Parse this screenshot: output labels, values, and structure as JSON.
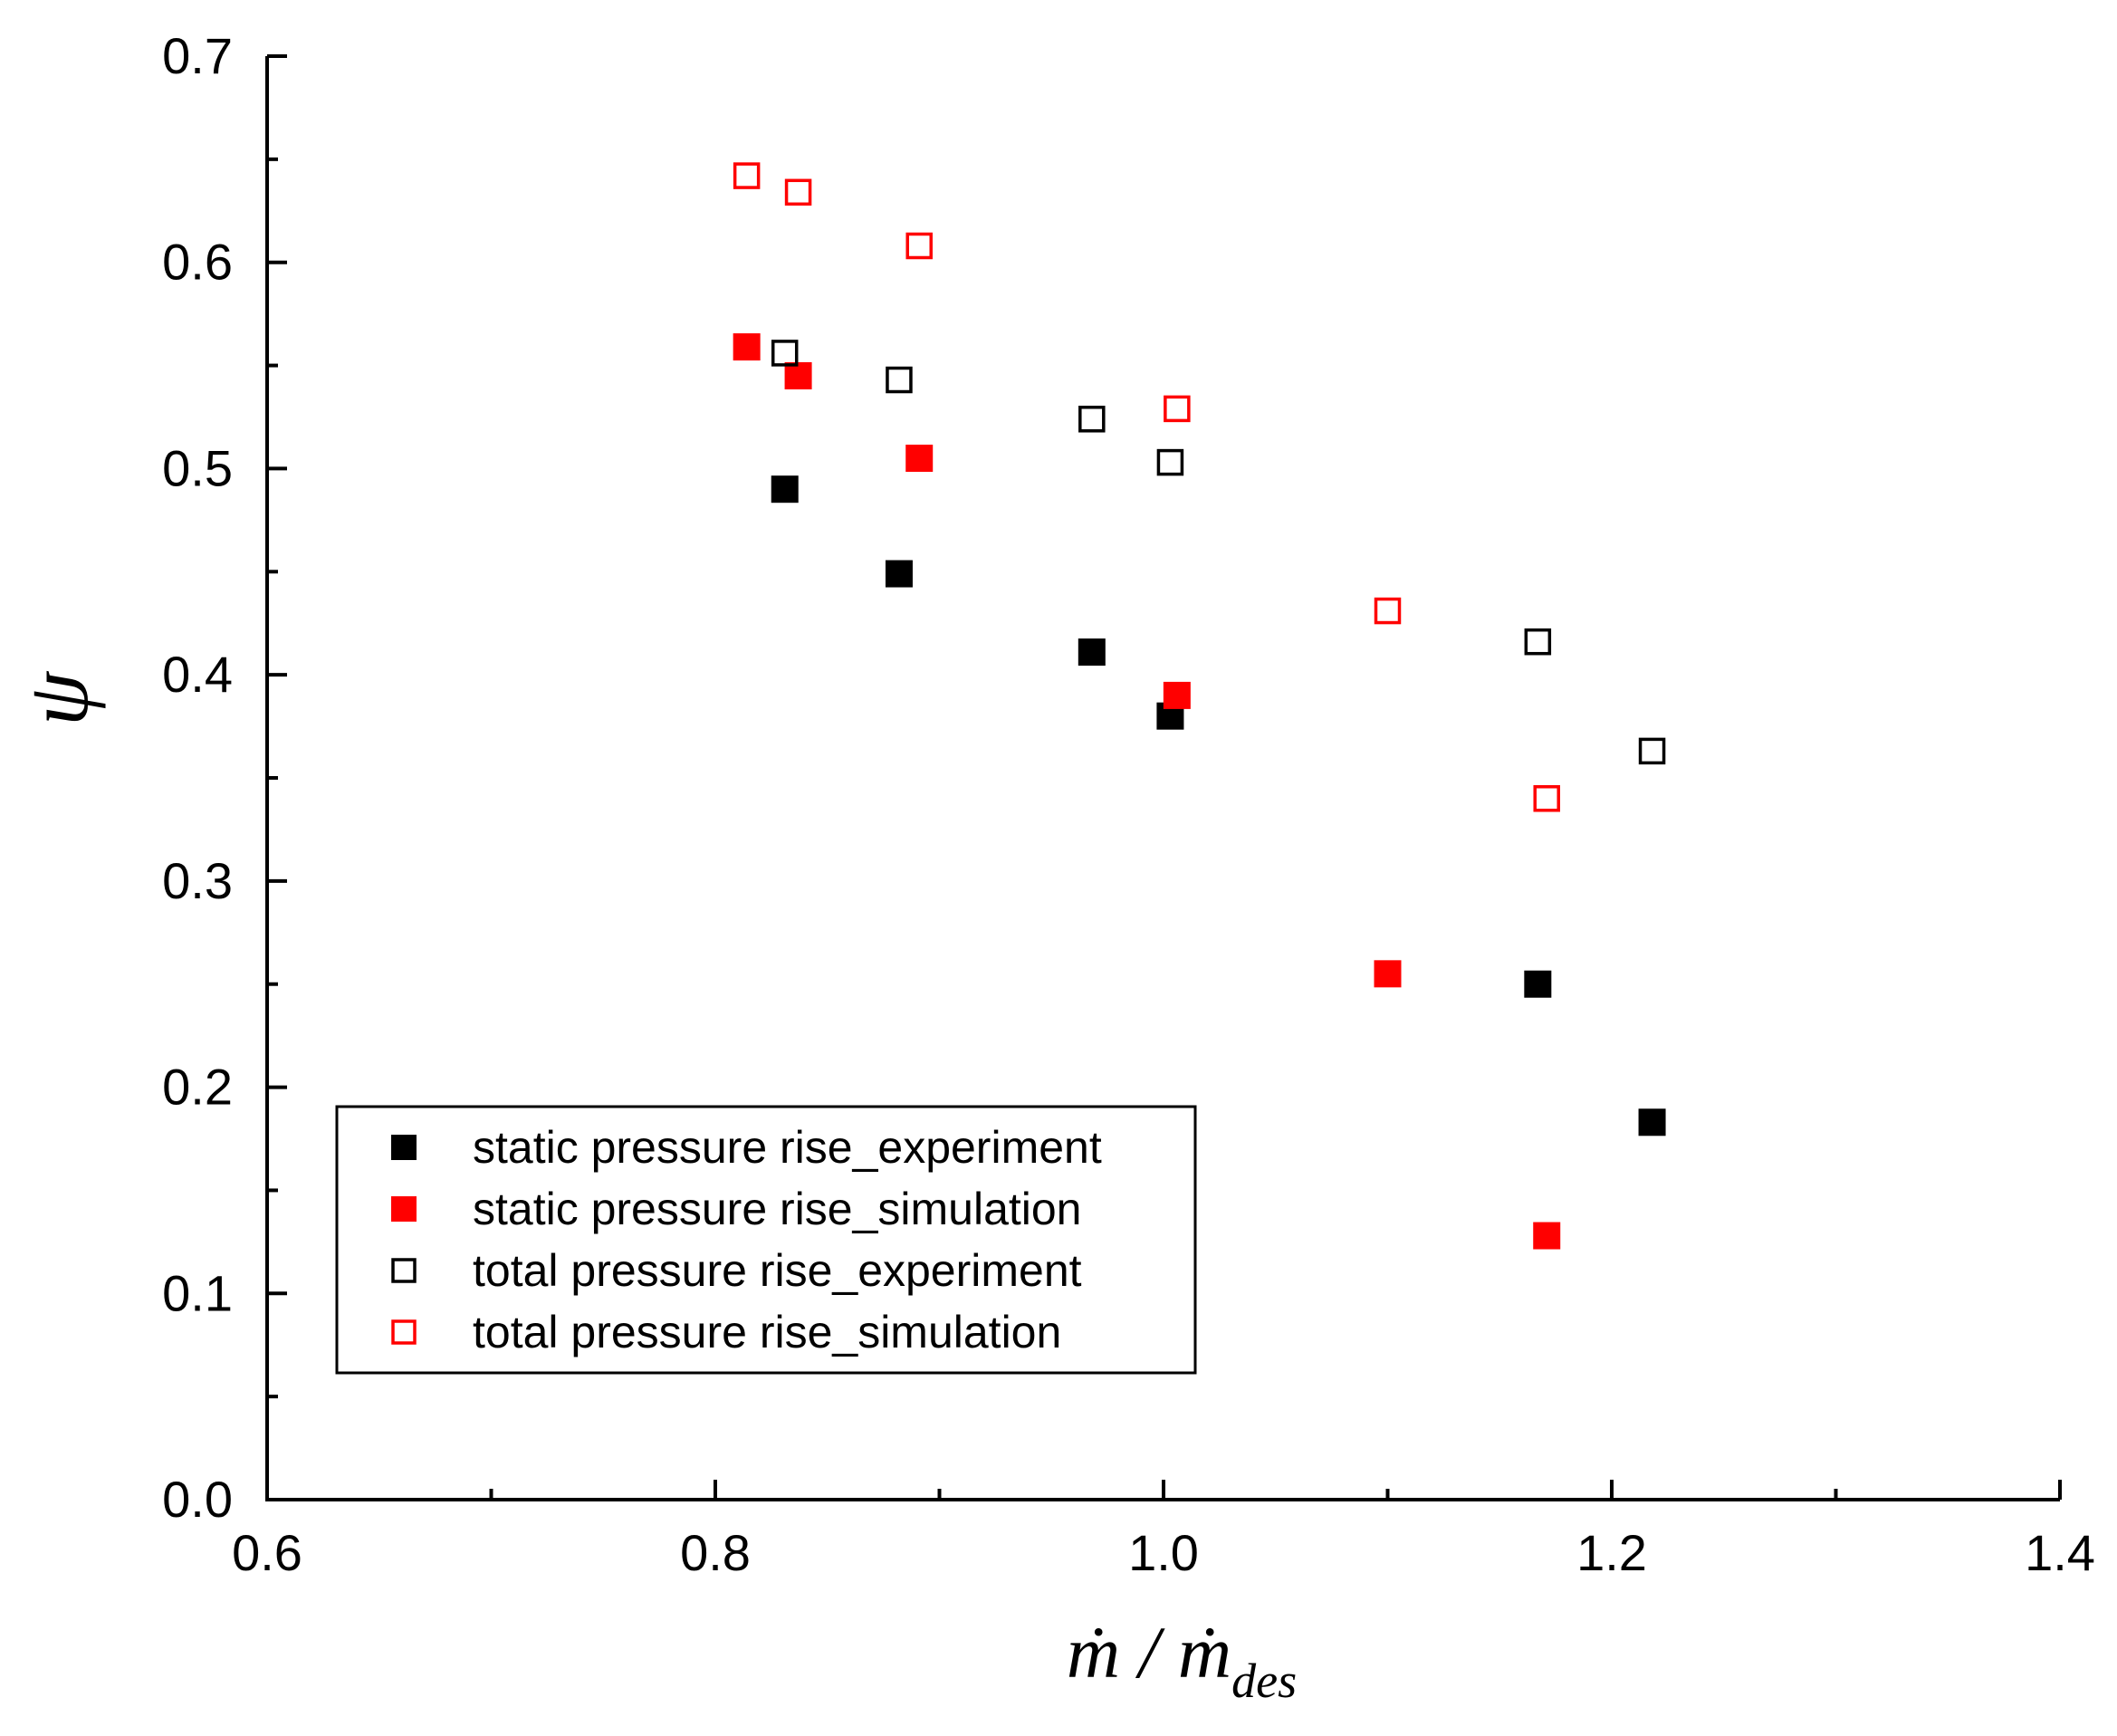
{
  "chart_data": {
    "type": "scatter",
    "title": "",
    "xlabel": {
      "main": "ṁ / ṁ",
      "sub": "des"
    },
    "ylabel": "ψ",
    "xlim": [
      0.6,
      1.4
    ],
    "ylim": [
      0.0,
      0.7
    ],
    "x_ticks": [
      "0.6",
      "0.8",
      "1.0",
      "1.2",
      "1.4"
    ],
    "y_ticks": [
      "0.0",
      "0.1",
      "0.2",
      "0.3",
      "0.4",
      "0.5",
      "0.6",
      "0.7"
    ],
    "legend_position": "bottom-left",
    "series": [
      {
        "name": "static pressure rise_experiment",
        "color": "#000000",
        "filled": true,
        "points": [
          [
            0.831,
            0.49
          ],
          [
            0.882,
            0.449
          ],
          [
            0.968,
            0.411
          ],
          [
            1.003,
            0.38
          ],
          [
            1.167,
            0.25
          ],
          [
            1.218,
            0.183
          ]
        ]
      },
      {
        "name": "static pressure rise_simulation",
        "color": "#ff0000",
        "filled": true,
        "points": [
          [
            0.814,
            0.559
          ],
          [
            0.837,
            0.545
          ],
          [
            0.891,
            0.505
          ],
          [
            1.006,
            0.39
          ],
          [
            1.1,
            0.255
          ],
          [
            1.171,
            0.128
          ]
        ]
      },
      {
        "name": "total pressure rise_experiment",
        "color": "#000000",
        "filled": false,
        "points": [
          [
            0.831,
            0.556
          ],
          [
            0.882,
            0.543
          ],
          [
            0.968,
            0.524
          ],
          [
            1.003,
            0.503
          ],
          [
            1.167,
            0.416
          ],
          [
            1.218,
            0.363
          ]
        ]
      },
      {
        "name": "total pressure rise_simulation",
        "color": "#ff0000",
        "filled": false,
        "points": [
          [
            0.814,
            0.642
          ],
          [
            0.837,
            0.634
          ],
          [
            0.891,
            0.608
          ],
          [
            1.006,
            0.529
          ],
          [
            1.1,
            0.431
          ],
          [
            1.171,
            0.34
          ]
        ]
      }
    ]
  }
}
